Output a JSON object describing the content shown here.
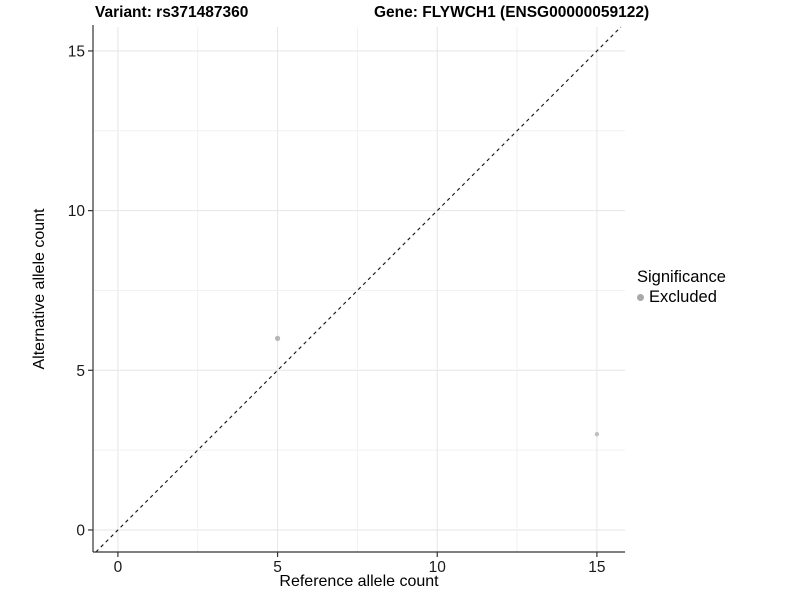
{
  "header": {
    "variant_title": "Variant: rs371487360",
    "gene_title": "Gene: FLYWCH1 (ENSG00000059122)"
  },
  "axes": {
    "x_label": "Reference allele count",
    "y_label": "Alternative allele count"
  },
  "legend": {
    "title": "Significance",
    "items": [
      {
        "label": "Excluded",
        "color": "#a9a9a9"
      }
    ]
  },
  "chart_data": {
    "type": "scatter",
    "title": "Variant: rs371487360   Gene: FLYWCH1 (ENSG00000059122)",
    "xlabel": "Reference allele count",
    "ylabel": "Alternative allele count",
    "xlim": [
      -0.78,
      15.88
    ],
    "ylim": [
      -0.69,
      15.75
    ],
    "x_ticks": [
      0,
      5,
      10,
      15
    ],
    "y_ticks": [
      0,
      5,
      10,
      15
    ],
    "minor_grid_step": 2.5,
    "grid": true,
    "legend_position": "right",
    "series": [
      {
        "name": "Excluded",
        "points": [
          {
            "x": 5,
            "y": 6,
            "size": 2.6,
            "color": "#b7b7b7"
          },
          {
            "x": 15,
            "y": 3,
            "size": 2.2,
            "color": "#c0c0c0"
          }
        ]
      }
    ],
    "reference_line": {
      "type": "identity",
      "slope": 1,
      "intercept": 0,
      "style": "dashed",
      "color": "#111111"
    },
    "colors": {
      "grid_major": "#e6e6e6",
      "grid_minor": "#f1f1f1",
      "axis_line": "#333333",
      "tick_mark": "#333333",
      "tick_label": "#1a1a1a",
      "background": "#ffffff"
    }
  }
}
